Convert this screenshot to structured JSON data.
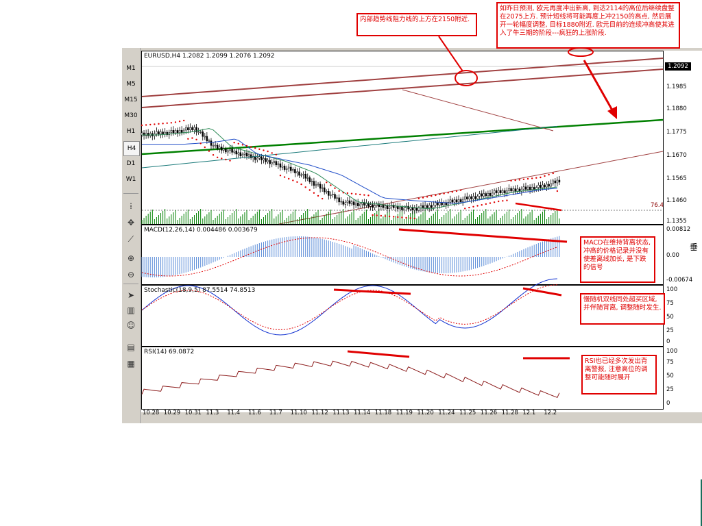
{
  "toolbar": {
    "timeframes": [
      "M1",
      "M5",
      "M15",
      "M30",
      "H1",
      "H4",
      "D1",
      "W1"
    ],
    "active": "H4"
  },
  "price_pane": {
    "label": "EURUSD,H4  1.2082 1.2099 1.2076 1.2092",
    "ticks": [
      "1.2092",
      "1.1985",
      "1.1880",
      "1.1775",
      "1.1670",
      "1.1565",
      "1.1460",
      "1.1355"
    ],
    "current_price": "1.2092",
    "volume_label": "76.4"
  },
  "macd_pane": {
    "label": "MACD(12,26,14)  0.004486  0.003679",
    "ticks": [
      "0.00812",
      "0.00",
      "-0.00674"
    ],
    "corner_glyph": "垂"
  },
  "stoch_pane": {
    "label": "Stochastic(18,9,5)  87.5514  74.8513",
    "ticks": [
      "100",
      "75",
      "50",
      "25",
      "0"
    ]
  },
  "rsi_pane": {
    "label": "RSI(14)  69.0872",
    "ticks": [
      "100",
      "75",
      "50",
      "25",
      "0"
    ]
  },
  "x_axis": {
    "labels": [
      "10.28",
      "10.29",
      "10.31",
      "11.3",
      "11.4",
      "11.6",
      "11.7",
      "11.10",
      "11.12",
      "11.13",
      "11.14",
      "11.18",
      "11.19",
      "11.20",
      "11.24",
      "11.25",
      "11.26",
      "11.28",
      "12.1",
      "12.2"
    ]
  },
  "annotations": {
    "resistance": "内部趋势线阻力线的上方在2150附近.",
    "forecast": "如昨日预测, 欧元再度冲出新高, 到达2114的高位后继续盘整在2075上方.  预计短线将可能再度上冲2150的高点, 然后展开一轮幅度调整, 目标1880附近. 欧元目前的连续冲高使其进入了牛三期的阶段---疯狂的上涨阶段.",
    "macd": "MACD在维持背离状态, 冲高的价格记录并没有使差离线加长, 是下跌的信号",
    "stoch": "慢随机双线同处超买区域, 并伴随背离, 调整随时发生.",
    "rsi": "RSI也已经多次发出背离警报, 注意高位的调整可能随时展开"
  },
  "colors": {
    "annotation": "#e00000",
    "up_candle": "#008000",
    "down_candle": "#000000",
    "sar": "#e00000",
    "trend_green": "#008000",
    "channel": "#a04040",
    "ma_fast": "#2e8b57",
    "ma_mid": "#1e4cc8",
    "ma_slow": "#1a7a7a",
    "macd_bar": "#5a8cd8",
    "signal_line": "#e00000",
    "stoch_main": "#1030d0",
    "rsi_line": "#8b1a1a"
  }
}
